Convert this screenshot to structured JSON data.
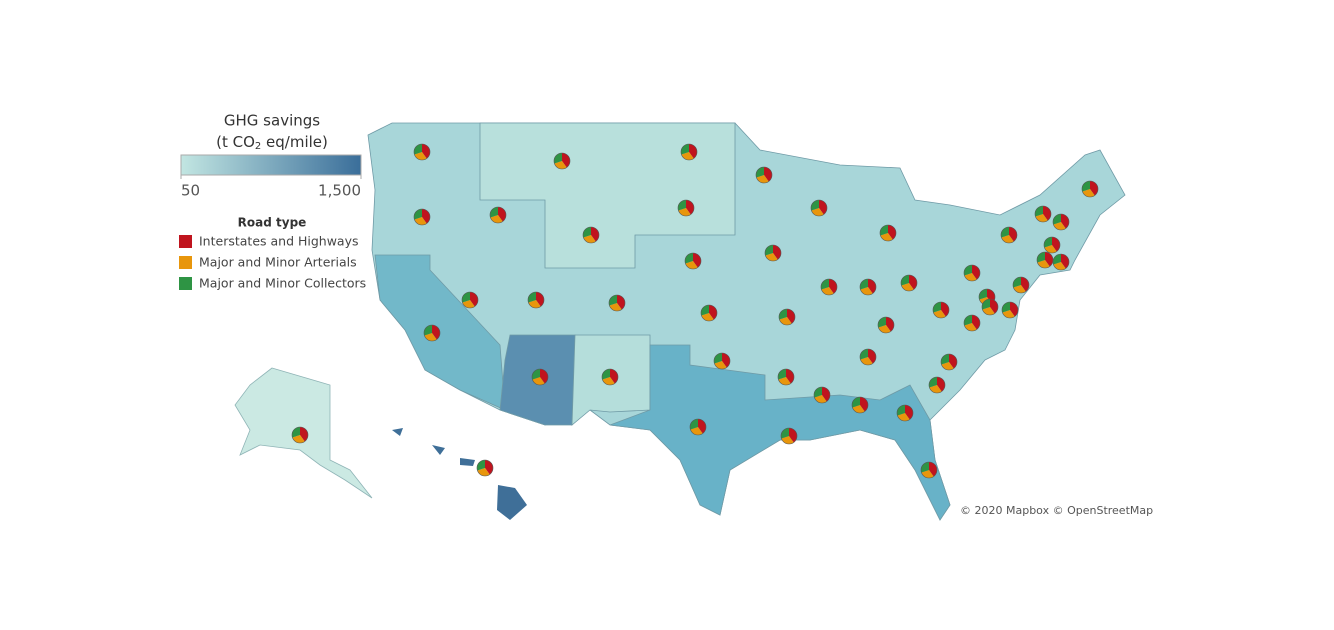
{
  "legend": {
    "title": "GHG savings",
    "unit_prefix": "(t CO",
    "unit_sub": "2",
    "unit_suffix": " eq/mile)",
    "scale_min": {
      "value": 50,
      "label": "50"
    },
    "scale_max": {
      "value": 1500,
      "label": "1,500"
    },
    "color_low": "#c2e6e2",
    "color_high": "#3a6e9a"
  },
  "road_type": {
    "title": "Road type",
    "items": [
      {
        "label": "Interstates and Highways",
        "color": "#c0141e"
      },
      {
        "label": "Major and Minor Arterials",
        "color": "#e8960c"
      },
      {
        "label": "Major and Minor Collectors",
        "color": "#2e9444"
      }
    ]
  },
  "attribution": "© 2020 Mapbox © OpenStreetMap"
}
